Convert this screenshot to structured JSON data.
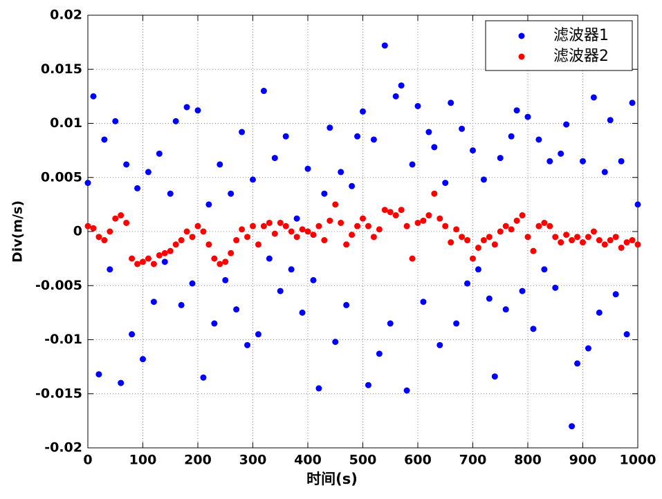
{
  "chart_data": {
    "type": "scatter",
    "xlabel": "时间(s)",
    "ylabel": "Div(m/s)",
    "x": [
      0,
      10,
      20,
      30,
      40,
      50,
      60,
      70,
      80,
      90,
      100,
      110,
      120,
      130,
      140,
      150,
      160,
      170,
      180,
      190,
      200,
      210,
      220,
      230,
      240,
      250,
      260,
      270,
      280,
      290,
      300,
      310,
      320,
      330,
      340,
      350,
      360,
      370,
      380,
      390,
      400,
      410,
      420,
      430,
      440,
      450,
      460,
      470,
      480,
      490,
      500,
      510,
      520,
      530,
      540,
      550,
      560,
      570,
      580,
      590,
      600,
      610,
      620,
      630,
      640,
      650,
      660,
      670,
      680,
      690,
      700,
      710,
      720,
      730,
      740,
      750,
      760,
      770,
      780,
      790,
      800,
      810,
      820,
      830,
      840,
      850,
      860,
      870,
      880,
      890,
      900,
      910,
      920,
      930,
      940,
      950,
      960,
      970,
      980,
      990,
      1000
    ],
    "series": [
      {
        "name": "滤波器1",
        "color": "#0000ff",
        "values": [
          0.0045,
          0.0125,
          -0.0132,
          0.0085,
          -0.0035,
          0.0102,
          -0.014,
          0.0062,
          -0.0095,
          0.004,
          -0.0118,
          0.0055,
          -0.0065,
          0.0072,
          -0.0028,
          0.0035,
          0.0102,
          -0.0068,
          0.0115,
          -0.0048,
          0.0112,
          -0.0135,
          0.0025,
          -0.0085,
          0.0062,
          -0.0045,
          0.0035,
          -0.0072,
          0.0092,
          -0.0105,
          0.0048,
          -0.0095,
          0.013,
          -0.0025,
          0.0068,
          -0.0055,
          0.0088,
          -0.0035,
          0.0012,
          -0.0075,
          0.0058,
          -0.0045,
          -0.0145,
          0.0035,
          0.0096,
          -0.0102,
          0.0055,
          -0.0068,
          0.0042,
          0.0088,
          0.0111,
          -0.0142,
          0.0085,
          -0.0113,
          0.0172,
          -0.0085,
          0.0125,
          0.0135,
          -0.0147,
          0.0062,
          0.0116,
          -0.0065,
          0.0092,
          0.0078,
          -0.0105,
          0.0045,
          0.0119,
          -0.0085,
          0.0095,
          -0.0048,
          0.0075,
          -0.0035,
          0.0048,
          -0.0062,
          -0.0134,
          0.0068,
          -0.0072,
          0.0088,
          0.0112,
          -0.0055,
          0.0106,
          -0.009,
          0.0085,
          -0.0035,
          0.0065,
          -0.0052,
          0.0072,
          0.0099,
          -0.018,
          -0.0122,
          0.0065,
          -0.0108,
          0.0124,
          -0.0075,
          0.0055,
          0.0103,
          -0.0058,
          0.0065,
          -0.0095,
          0.0119,
          0.0025
        ]
      },
      {
        "name": "滤波器2",
        "color": "#ff0000",
        "values": [
          0.0005,
          0.0003,
          -0.0005,
          -0.0008,
          0.0,
          0.0012,
          0.0015,
          0.0008,
          -0.0025,
          -0.003,
          -0.0028,
          -0.0025,
          -0.003,
          -0.0022,
          -0.002,
          -0.0018,
          -0.0012,
          -0.0008,
          0.0,
          -0.0005,
          0.0005,
          0.0,
          -0.0012,
          -0.0025,
          -0.003,
          -0.0028,
          -0.002,
          -0.0008,
          0.0002,
          -0.0005,
          0.0005,
          -0.0012,
          0.0005,
          0.0008,
          -0.0002,
          0.0008,
          0.0005,
          0.0,
          -0.0005,
          0.0002,
          0.0,
          -0.0003,
          0.0005,
          -0.0008,
          0.001,
          0.0025,
          0.0008,
          -0.0012,
          -0.0003,
          0.0005,
          0.0012,
          0.0005,
          -0.0005,
          0.0002,
          0.002,
          0.0018,
          0.0015,
          0.002,
          0.0005,
          -0.0025,
          0.0008,
          0.001,
          0.0015,
          0.0035,
          0.0012,
          0.0005,
          -0.001,
          0.0002,
          -0.0005,
          -0.0008,
          -0.0025,
          -0.0015,
          -0.0008,
          -0.0005,
          -0.0012,
          0.0,
          0.0005,
          0.0002,
          0.001,
          0.0015,
          -0.0005,
          -0.0018,
          0.0005,
          0.0008,
          0.0005,
          -0.0005,
          -0.001,
          -0.0003,
          -0.0008,
          -0.0005,
          -0.001,
          -0.0005,
          0.0,
          -0.0008,
          -0.0012,
          -0.0008,
          -0.0005,
          -0.0015,
          -0.001,
          -0.0008,
          -0.0012
        ]
      }
    ],
    "xlim": [
      0,
      1000
    ],
    "xticks": [
      0,
      100,
      200,
      300,
      400,
      500,
      600,
      700,
      800,
      900,
      1000
    ],
    "ylim": [
      -0.02,
      0.02
    ],
    "yticks": [
      -0.02,
      -0.015,
      -0.01,
      -0.005,
      0,
      0.005,
      0.01,
      0.015,
      0.02
    ],
    "grid": true,
    "legend": "upper right"
  }
}
